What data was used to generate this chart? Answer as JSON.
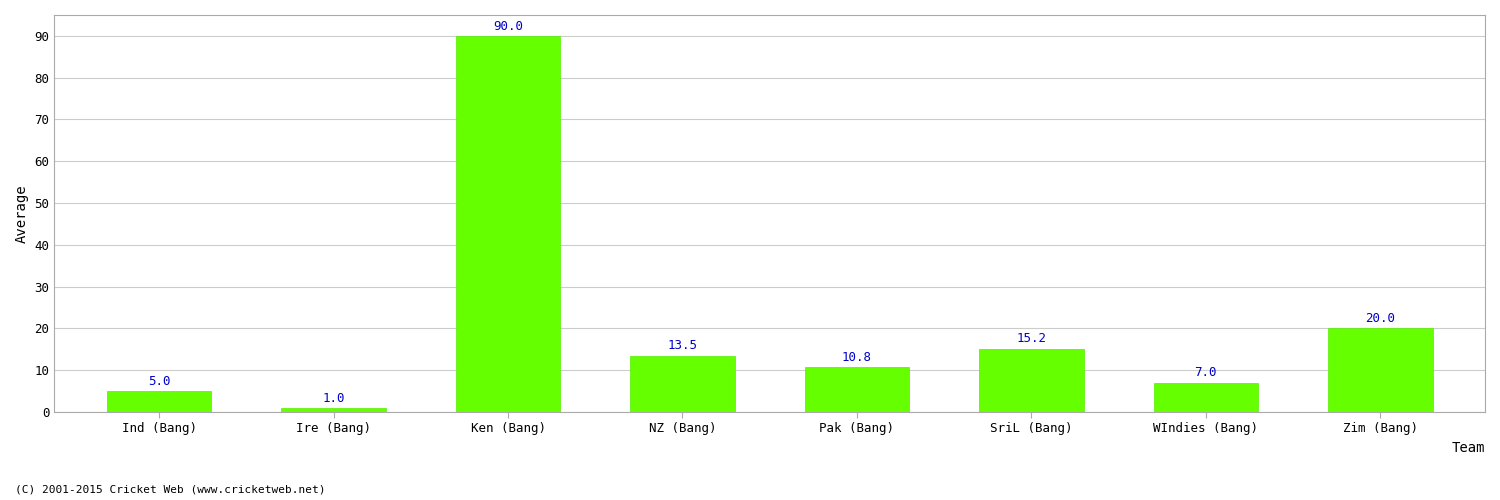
{
  "categories": [
    "Ind (Bang)",
    "Ire (Bang)",
    "Ken (Bang)",
    "NZ (Bang)",
    "Pak (Bang)",
    "SriL (Bang)",
    "WIndies (Bang)",
    "Zim (Bang)"
  ],
  "values": [
    5.0,
    1.0,
    90.0,
    13.5,
    10.8,
    15.2,
    7.0,
    20.0
  ],
  "bar_color": "#66ff00",
  "bar_edge_color": "#55ee00",
  "value_color": "#0000cc",
  "xlabel": "Team",
  "ylabel": "Average",
  "ylim": [
    0,
    95
  ],
  "yticks": [
    0,
    10,
    20,
    30,
    40,
    50,
    60,
    70,
    80,
    90
  ],
  "grid_color": "#cccccc",
  "bg_color": "#ffffff",
  "plot_bg_color": "#ffffff",
  "border_color": "#aaaaaa",
  "footnote": "(C) 2001-2015 Cricket Web (www.cricketweb.net)",
  "value_fontsize": 9,
  "label_fontsize": 9,
  "axis_label_fontsize": 10,
  "footnote_fontsize": 8,
  "bar_width": 0.6
}
